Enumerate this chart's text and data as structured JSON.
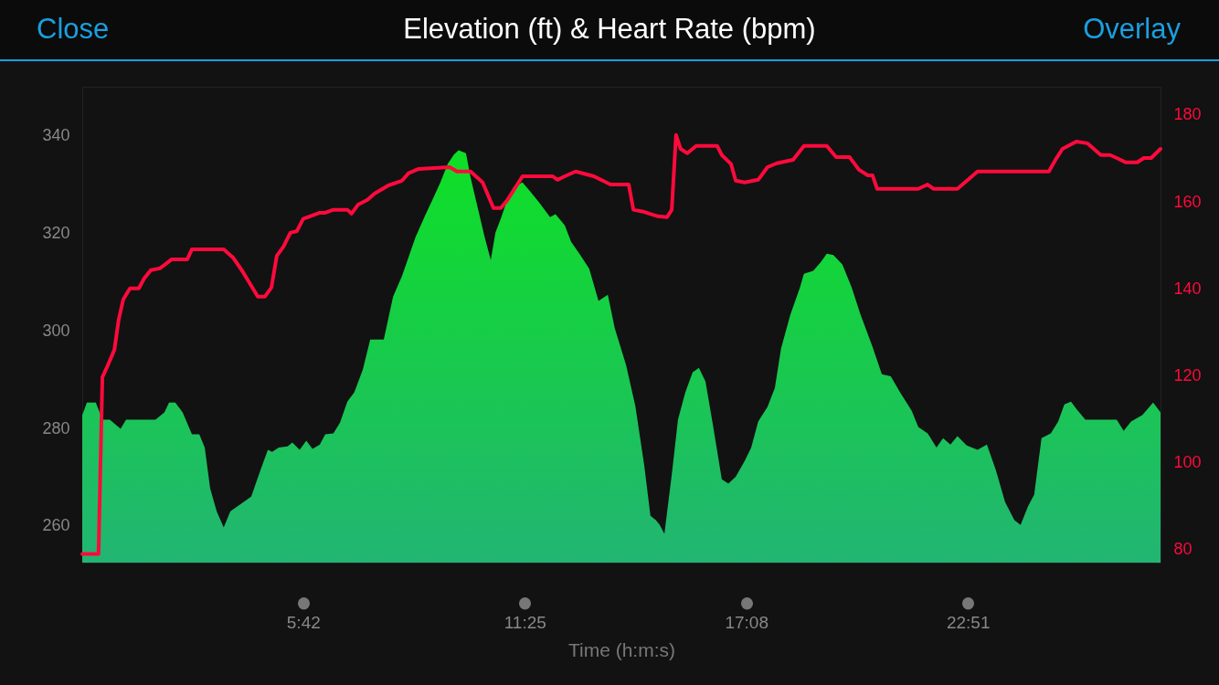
{
  "chart_data": {
    "type": "area",
    "title": "Elevation (ft) & Heart Rate (bpm)",
    "xlabel": "Time (h:m:s)",
    "annotations": [
      "Close",
      "Overlay"
    ],
    "xlim": [
      0,
      27.82
    ],
    "xticks": [
      {
        "value": 5.7,
        "label": "5:42"
      },
      {
        "value": 11.4167,
        "label": "11:25"
      },
      {
        "value": 17.1333,
        "label": "17:08"
      },
      {
        "value": 22.85,
        "label": "22:51"
      }
    ],
    "ylim": [
      252.5,
      350
    ],
    "yticks": [
      260,
      280,
      300,
      320,
      340
    ],
    "y2lim": [
      77,
      186.5
    ],
    "y2ticks": [
      80,
      100,
      120,
      140,
      160,
      180
    ],
    "series": [
      {
        "type": "area",
        "color": "#0ee025",
        "x": [
          0,
          0.12,
          0.35,
          0.52,
          0.71,
          0.99,
          1.13,
          1.89,
          2.12,
          2.24,
          2.4,
          2.59,
          2.83,
          3.02,
          3.16,
          3.3,
          3.47,
          3.65,
          3.82,
          4.36,
          4.6,
          4.79,
          4.9,
          5.07,
          5.3,
          5.42,
          5.61,
          5.78,
          5.94,
          6.13,
          6.27,
          6.48,
          6.65,
          6.84,
          7.02,
          7.24,
          7.43,
          7.78,
          8.02,
          8.25,
          8.6,
          8.84,
          9.08,
          9.24,
          9.43,
          9.59,
          9.71,
          9.9,
          10.02,
          10.18,
          10.37,
          10.54,
          10.66,
          10.8,
          10.96,
          11.13,
          11.36,
          11.55,
          11.79,
          12.07,
          12.21,
          12.45,
          12.61,
          12.85,
          13.08,
          13.32,
          13.56,
          13.74,
          14.03,
          14.27,
          14.5,
          14.66,
          14.8,
          14.9,
          15.02,
          15.21,
          15.37,
          15.56,
          15.75,
          15.91,
          16.08,
          16.27,
          16.5,
          16.67,
          16.86,
          17.09,
          17.26,
          17.44,
          17.68,
          17.87,
          18.03,
          18.27,
          18.51,
          18.62,
          18.86,
          19.05,
          19.21,
          19.38,
          19.61,
          19.85,
          20.08,
          20.39,
          20.63,
          20.86,
          21.1,
          21.4,
          21.57,
          21.81,
          22.04,
          22.21,
          22.4,
          22.58,
          22.82,
          23.1,
          23.34,
          23.57,
          23.81,
          24.05,
          24.21,
          24.4,
          24.56,
          24.75,
          24.99,
          25.18,
          25.34,
          25.51,
          25.65,
          25.88,
          26.69,
          26.87,
          27.06,
          27.35,
          27.63,
          27.82
        ],
        "values": [
          282.7,
          285.3,
          285.3,
          281.8,
          281.8,
          279.9,
          281.8,
          281.8,
          283.3,
          285.3,
          285.3,
          283.3,
          278.8,
          278.8,
          276.1,
          267.7,
          263,
          259.7,
          263,
          266,
          271.5,
          275.6,
          275.2,
          276.1,
          276.3,
          277.1,
          275.6,
          277.5,
          275.8,
          276.7,
          278.8,
          279,
          281.2,
          285.5,
          287.4,
          292.1,
          298.2,
          298.2,
          307,
          311.2,
          319.2,
          323.5,
          327.6,
          330.4,
          334.2,
          336.1,
          337,
          336.4,
          331.4,
          326,
          319.6,
          314.5,
          320.1,
          323,
          326.7,
          329.5,
          330.4,
          328.6,
          326.3,
          323.3,
          323.9,
          321.6,
          318.3,
          315.5,
          312.7,
          306.1,
          307.4,
          300.5,
          293,
          284.6,
          272.4,
          262.1,
          261.2,
          260.2,
          258.4,
          270.5,
          281.8,
          287.4,
          291.5,
          292.4,
          289.6,
          280.8,
          269.6,
          268.7,
          270.1,
          273.3,
          276.1,
          281.4,
          284.4,
          288.3,
          296.4,
          303.3,
          308.7,
          311.7,
          312.3,
          314,
          315.8,
          315.5,
          313.6,
          308.9,
          303.3,
          296.7,
          291.1,
          290.7,
          287.4,
          283.6,
          280.3,
          279,
          276.1,
          278,
          276.7,
          278.4,
          276.5,
          275.6,
          276.7,
          271.5,
          264.9,
          261.2,
          260.2,
          264,
          266.4,
          278,
          279,
          281.4,
          284.9,
          285.5,
          284,
          281.8,
          281.8,
          279.5,
          281.4,
          282.7,
          285.3,
          283.3
        ]
      },
      {
        "type": "line",
        "axis": "y2",
        "color": "#ff0a3c",
        "x": [
          0,
          0.42,
          0.52,
          0.66,
          0.83,
          0.94,
          1.06,
          1.23,
          1.46,
          1.6,
          1.77,
          2.0,
          2.12,
          2.31,
          2.71,
          2.83,
          3.65,
          3.89,
          4.13,
          4.43,
          4.53,
          4.71,
          4.88,
          5.02,
          5.19,
          5.37,
          5.54,
          5.7,
          5.94,
          6.13,
          6.27,
          6.48,
          6.84,
          6.95,
          7.12,
          7.36,
          7.54,
          7.9,
          8.25,
          8.42,
          8.68,
          9.48,
          9.67,
          10.02,
          10.33,
          10.61,
          10.8,
          10.96,
          11.36,
          12.14,
          12.26,
          12.45,
          12.73,
          13.2,
          13.63,
          14.1,
          14.22,
          14.5,
          14.85,
          15.09,
          15.21,
          15.32,
          15.44,
          15.61,
          15.84,
          16.38,
          16.5,
          16.74,
          16.86,
          17.09,
          17.44,
          17.68,
          17.92,
          18.34,
          18.62,
          19.21,
          19.45,
          19.8,
          20.04,
          20.27,
          20.39,
          20.51,
          21.57,
          21.81,
          21.97,
          22.58,
          23.1,
          24.94,
          25.11,
          25.29,
          25.65,
          25.93,
          26.28,
          26.52,
          26.69,
          26.92,
          27.22,
          27.39,
          27.58,
          27.82
        ],
        "values": [
          79,
          79,
          119.7,
          122.4,
          126,
          132.9,
          137.6,
          140.1,
          140.1,
          142.4,
          144.3,
          144.7,
          145.5,
          146.8,
          146.8,
          149.1,
          149.1,
          147.2,
          144.1,
          139.7,
          138.2,
          138.2,
          140.3,
          147.6,
          149.7,
          152.9,
          153.3,
          156.1,
          156.9,
          157.5,
          157.5,
          158.2,
          158.2,
          157.3,
          159.4,
          160.5,
          161.9,
          163.8,
          164.9,
          166.6,
          167.6,
          168,
          167,
          167,
          164.5,
          158.6,
          158.6,
          160.3,
          165.9,
          165.9,
          165.1,
          165.9,
          167,
          165.9,
          164,
          164,
          158.2,
          157.7,
          156.7,
          156.5,
          158.2,
          175.4,
          172.2,
          171.2,
          172.9,
          172.9,
          170.8,
          168.7,
          164.9,
          164.5,
          165.1,
          168,
          168.9,
          169.7,
          172.9,
          172.9,
          170.3,
          170.3,
          167.4,
          166.1,
          166.1,
          163,
          163,
          164,
          163,
          163,
          167,
          167,
          169.7,
          172.2,
          173.9,
          173.5,
          170.8,
          170.8,
          170.1,
          169.1,
          169.1,
          170.1,
          170.1,
          172.2
        ]
      }
    ]
  }
}
